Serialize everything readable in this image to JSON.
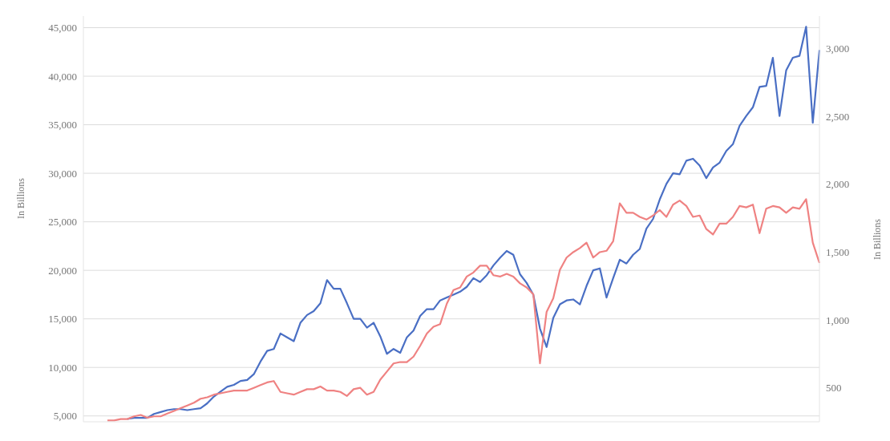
{
  "chart_data": {
    "type": "line",
    "ylabel": "In Billions",
    "y2label": "In Billions",
    "categories": [
      null,
      null,
      null,
      null,
      null,
      null,
      null,
      null,
      null,
      null,
      null,
      null,
      null,
      null,
      null,
      null,
      null,
      null,
      null,
      null,
      null,
      null,
      null,
      null,
      null,
      null,
      null,
      null,
      null,
      null,
      null,
      null,
      null,
      null,
      null,
      null,
      null,
      null,
      null,
      null,
      null,
      null,
      null,
      null,
      null,
      null,
      null,
      null,
      null,
      null,
      null,
      null,
      null,
      null,
      null,
      null,
      null,
      null,
      null,
      null,
      null,
      null,
      null,
      null,
      null,
      null,
      null,
      null,
      null,
      null,
      null,
      null,
      null,
      null,
      null,
      null,
      null,
      null,
      null,
      null,
      null,
      null,
      null,
      null,
      null,
      null,
      null,
      null,
      null,
      null,
      null,
      null,
      null,
      null,
      null,
      null,
      null,
      null,
      null,
      null,
      null,
      null,
      null,
      null,
      null,
      null,
      null,
      null
    ],
    "series": [
      {
        "color": "#4a6fc4",
        "values": [
          null,
          null,
          null,
          4700,
          4800,
          4800,
          4800,
          5200,
          5400,
          5600,
          5700,
          5700,
          5600,
          5700,
          5800,
          6300,
          7000,
          7500,
          8000,
          8200,
          8600,
          8700,
          9300,
          10600,
          11700,
          11900,
          13500,
          13100,
          12700,
          14600,
          15400,
          15800,
          16600,
          19000,
          18100,
          18100,
          16600,
          15000,
          15000,
          14100,
          14600,
          13200,
          11400,
          11900,
          11500,
          13100,
          13800,
          15300,
          16000,
          16000,
          16900,
          17200,
          17500,
          17800,
          18300,
          19200,
          18800,
          19500,
          20500,
          21300,
          22000,
          21600,
          19600,
          18700,
          17500,
          14000,
          12100,
          15100,
          16500,
          16900,
          17000,
          16500,
          18400,
          20000,
          20200,
          17200,
          19200,
          21100,
          20700,
          21600,
          22200,
          24300,
          25300,
          27300,
          28900,
          30000,
          29900,
          31300,
          31500,
          30800,
          29500,
          30600,
          31100,
          32300,
          33000,
          34900,
          35900,
          36800,
          38900,
          39000,
          41900,
          35900,
          40600,
          41900,
          42100,
          45100,
          35200,
          42700
        ]
      },
      {
        "color": "#ef8282",
        "axis": "y2",
        "values": [
          260,
          260,
          270,
          270,
          290,
          300,
          280,
          290,
          290,
          310,
          330,
          350,
          370,
          390,
          420,
          430,
          450,
          460,
          470,
          480,
          480,
          480,
          500,
          520,
          540,
          550,
          470,
          460,
          450,
          470,
          490,
          490,
          510,
          480,
          480,
          470,
          440,
          490,
          500,
          450,
          470,
          560,
          620,
          680,
          690,
          690,
          730,
          810,
          900,
          950,
          970,
          1120,
          1220,
          1240,
          1320,
          1350,
          1400,
          1400,
          1330,
          1320,
          1340,
          1320,
          1270,
          1240,
          1190,
          680,
          1060,
          1160,
          1370,
          1460,
          1500,
          1530,
          1570,
          1460,
          1500,
          1510,
          1580,
          1860,
          1790,
          1790,
          1760,
          1740,
          1770,
          1810,
          1760,
          1850,
          1880,
          1840,
          1760,
          1770,
          1670,
          1630,
          1710,
          1710,
          1760,
          1840,
          1830,
          1850,
          1640,
          1820,
          1840,
          1830,
          1790,
          1830,
          1820,
          1890,
          1570,
          1420
        ]
      }
    ],
    "ylim": [
      4400,
      46200
    ],
    "yticks": [
      {
        "value": 5000,
        "label": "5,000"
      },
      {
        "value": 10000,
        "label": "10,000"
      },
      {
        "value": 15000,
        "label": "15,000"
      },
      {
        "value": 20000,
        "label": "20,000"
      },
      {
        "value": 25000,
        "label": "25,000"
      },
      {
        "value": 30000,
        "label": "30,000"
      },
      {
        "value": 35000,
        "label": "35,000"
      },
      {
        "value": 40000,
        "label": "40,000"
      },
      {
        "value": 45000,
        "label": "45,000"
      }
    ],
    "y2lim": [
      250,
      3240
    ],
    "y2ticks": [
      {
        "value": 500,
        "label": "500"
      },
      {
        "value": 1000,
        "label": "1,000"
      },
      {
        "value": 1500,
        "label": "1,500"
      },
      {
        "value": 2000,
        "label": "2,000"
      },
      {
        "value": 2500,
        "label": "2,500"
      },
      {
        "value": 3000,
        "label": "3,000"
      }
    ],
    "grid": "y",
    "legend": false,
    "marker": "none",
    "line_style": "solid"
  }
}
